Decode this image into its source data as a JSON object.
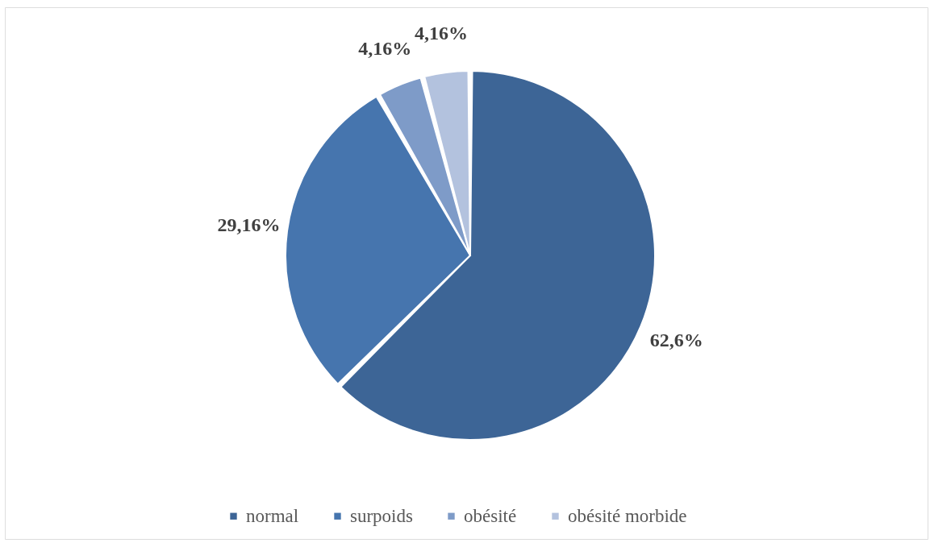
{
  "chart_data": {
    "type": "pie",
    "categories": [
      "normal",
      "surpoids",
      "obésité",
      "obésité morbide"
    ],
    "values": [
      62.6,
      29.16,
      4.16,
      4.16
    ],
    "colors": [
      "#3d6596",
      "#4675ae",
      "#7e9bc8",
      "#b3c2de"
    ],
    "value_labels": [
      "62,6%",
      "29,16%",
      "4,16%",
      "4,16%"
    ],
    "legend": "bottom"
  }
}
